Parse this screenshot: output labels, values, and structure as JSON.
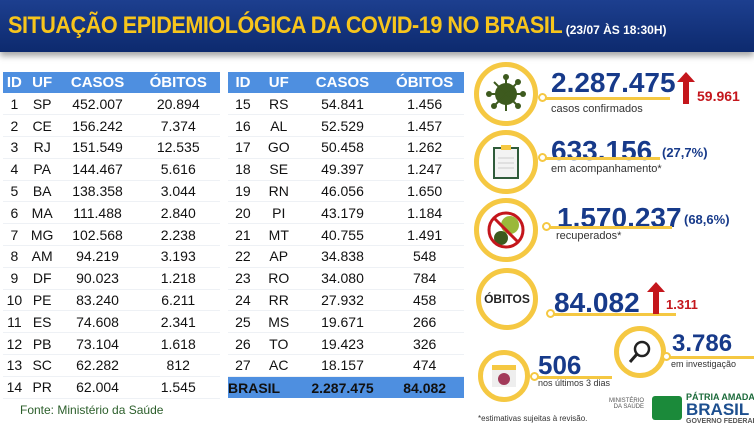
{
  "header": {
    "title": "SITUAÇÃO EPIDEMIOLÓGICA DA COVID-19 NO BRASIL",
    "timestamp": "(23/07 ÀS 18:30H)"
  },
  "columns": [
    "ID",
    "UF",
    "CASOS",
    "ÓBITOS"
  ],
  "table_left": [
    [
      "1",
      "SP",
      "452.007",
      "20.894"
    ],
    [
      "2",
      "CE",
      "156.242",
      "7.374"
    ],
    [
      "3",
      "RJ",
      "151.549",
      "12.535"
    ],
    [
      "4",
      "PA",
      "144.467",
      "5.616"
    ],
    [
      "5",
      "BA",
      "138.358",
      "3.044"
    ],
    [
      "6",
      "MA",
      "111.488",
      "2.840"
    ],
    [
      "7",
      "MG",
      "102.568",
      "2.238"
    ],
    [
      "8",
      "AM",
      "94.219",
      "3.193"
    ],
    [
      "9",
      "DF",
      "90.023",
      "1.218"
    ],
    [
      "10",
      "PE",
      "83.240",
      "6.211"
    ],
    [
      "11",
      "ES",
      "74.608",
      "2.341"
    ],
    [
      "12",
      "PB",
      "73.104",
      "1.618"
    ],
    [
      "13",
      "SC",
      "62.282",
      "812"
    ],
    [
      "14",
      "PR",
      "62.004",
      "1.545"
    ]
  ],
  "table_right": [
    [
      "15",
      "RS",
      "54.841",
      "1.456"
    ],
    [
      "16",
      "AL",
      "52.529",
      "1.457"
    ],
    [
      "17",
      "GO",
      "50.458",
      "1.262"
    ],
    [
      "18",
      "SE",
      "49.397",
      "1.247"
    ],
    [
      "19",
      "RN",
      "46.056",
      "1.650"
    ],
    [
      "20",
      "PI",
      "43.179",
      "1.184"
    ],
    [
      "21",
      "MT",
      "40.755",
      "1.491"
    ],
    [
      "22",
      "AP",
      "34.838",
      "548"
    ],
    [
      "23",
      "RO",
      "34.080",
      "784"
    ],
    [
      "24",
      "RR",
      "27.932",
      "458"
    ],
    [
      "25",
      "MS",
      "19.671",
      "266"
    ],
    [
      "26",
      "TO",
      "19.423",
      "326"
    ],
    [
      "27",
      "AC",
      "18.157",
      "474"
    ]
  ],
  "total": {
    "label": "BRASIL",
    "casos": "2.287.475",
    "obitos": "84.082"
  },
  "fonte": "Fonte: Ministério da Saúde",
  "stats": {
    "confirmed": {
      "value": "2.287.475",
      "label": "casos confirmados",
      "delta": "59.961",
      "icon": "virus-icon"
    },
    "monitoring": {
      "value": "633.156",
      "pct": "(27,7%)",
      "label": "em acompanhamento*",
      "icon": "clipboard-icon"
    },
    "recovered": {
      "value": "1.570.237",
      "pct": "(68,6%)",
      "label": "recuperados*",
      "icon": "no-virus-icon"
    },
    "deaths": {
      "badge": "ÓBITOS",
      "value": "84.082",
      "delta": "1.311"
    },
    "investigation": {
      "value": "3.786",
      "label": "em investigação",
      "icon": "magnifier-icon"
    },
    "recent": {
      "value": "506",
      "label": "nos últimos 3 dias",
      "calendar_day": "3",
      "icon": "calendar-icon"
    }
  },
  "footnote": "*estimativas sujeitas à revisão.",
  "logos": {
    "ministry": "MINISTÉRIO DA SAÚDE",
    "brand_top": "PÁTRIA AMADA",
    "brand": "BRASIL",
    "brand_sub": "GOVERNO FEDERAL"
  },
  "colors": {
    "navy": "#173a8a",
    "yellow": "#f5c842",
    "header_blue": "#4e8fe0",
    "red": "#c4161c"
  }
}
